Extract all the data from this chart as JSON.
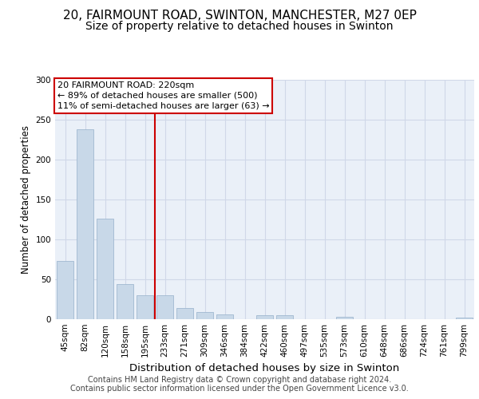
{
  "title1": "20, FAIRMOUNT ROAD, SWINTON, MANCHESTER, M27 0EP",
  "title2": "Size of property relative to detached houses in Swinton",
  "xlabel": "Distribution of detached houses by size in Swinton",
  "ylabel": "Number of detached properties",
  "categories": [
    "45sqm",
    "82sqm",
    "120sqm",
    "158sqm",
    "195sqm",
    "233sqm",
    "271sqm",
    "309sqm",
    "346sqm",
    "384sqm",
    "422sqm",
    "460sqm",
    "497sqm",
    "535sqm",
    "573sqm",
    "610sqm",
    "648sqm",
    "686sqm",
    "724sqm",
    "761sqm",
    "799sqm"
  ],
  "values": [
    73,
    238,
    126,
    44,
    30,
    30,
    14,
    9,
    6,
    0,
    5,
    5,
    0,
    0,
    3,
    0,
    0,
    0,
    0,
    0,
    2
  ],
  "bar_color": "#c8d8e8",
  "bar_edge_color": "#a0b8d0",
  "vline_x_index": 5,
  "vline_color": "#cc0000",
  "annotation_text": "20 FAIRMOUNT ROAD: 220sqm\n← 89% of detached houses are smaller (500)\n11% of semi-detached houses are larger (63) →",
  "annotation_box_color": "#ffffff",
  "annotation_box_edge": "#cc0000",
  "ylim": [
    0,
    300
  ],
  "yticks": [
    0,
    50,
    100,
    150,
    200,
    250,
    300
  ],
  "grid_color": "#d0d8e8",
  "bg_color": "#eaf0f8",
  "footer": "Contains HM Land Registry data © Crown copyright and database right 2024.\nContains public sector information licensed under the Open Government Licence v3.0.",
  "title1_fontsize": 11,
  "title2_fontsize": 10,
  "xlabel_fontsize": 9.5,
  "ylabel_fontsize": 8.5,
  "footer_fontsize": 7,
  "tick_fontsize": 7.5,
  "annot_fontsize": 8
}
